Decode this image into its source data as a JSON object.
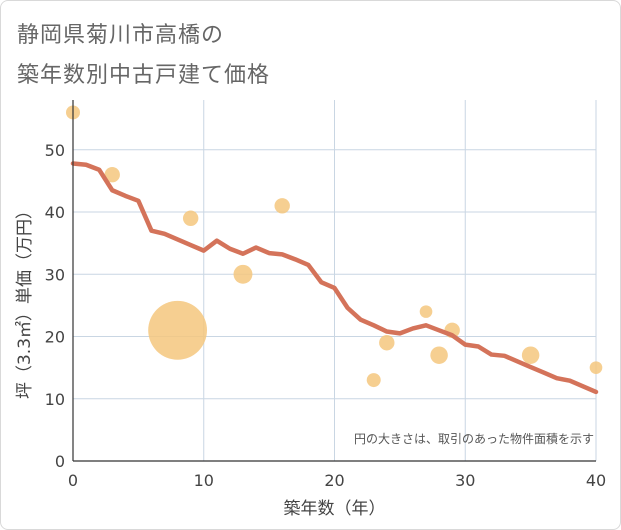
{
  "title_lines": [
    "静岡県菊川市高橋の",
    "築年数別中古戸建て価格"
  ],
  "chart_data": {
    "type": "scatter+line",
    "title": "静岡県菊川市高橋の築年数別中古戸建て価格",
    "xlabel": "築年数（年）",
    "ylabel": "坪（3.3㎡）単価（万円）",
    "xlim": [
      0,
      40
    ],
    "ylim": [
      0,
      58
    ],
    "xticks": [
      0,
      10,
      20,
      30,
      40
    ],
    "yticks": [
      0,
      10,
      20,
      30,
      40,
      50
    ],
    "grid": true,
    "note": "円の大きさは、取引のあった物件面積を示す",
    "colors": {
      "bubble": "#f5c77e",
      "line": "#d4735a",
      "grid": "#c9d6e3"
    },
    "scatter": [
      {
        "x": 0,
        "y": 56,
        "size": 1.0
      },
      {
        "x": 3,
        "y": 46,
        "size": 1.1
      },
      {
        "x": 8,
        "y": 21,
        "size": 4.2
      },
      {
        "x": 9,
        "y": 39,
        "size": 1.1
      },
      {
        "x": 13,
        "y": 30,
        "size": 1.35
      },
      {
        "x": 16,
        "y": 41,
        "size": 1.1
      },
      {
        "x": 23,
        "y": 13,
        "size": 1.0
      },
      {
        "x": 24,
        "y": 19,
        "size": 1.1
      },
      {
        "x": 27,
        "y": 24,
        "size": 0.9
      },
      {
        "x": 28,
        "y": 17,
        "size": 1.25
      },
      {
        "x": 29,
        "y": 21,
        "size": 1.1
      },
      {
        "x": 35,
        "y": 17,
        "size": 1.25
      },
      {
        "x": 40,
        "y": 15,
        "size": 0.9
      }
    ],
    "series": [
      {
        "name": "trend",
        "x": [
          0,
          1,
          2,
          3,
          4,
          5,
          6,
          7,
          8,
          9,
          10,
          11,
          12,
          13,
          14,
          15,
          16,
          17,
          18,
          19,
          20,
          21,
          22,
          23,
          24,
          25,
          26,
          27,
          28,
          29,
          30,
          31,
          32,
          33,
          34,
          35,
          36,
          37,
          38,
          39,
          40
        ],
        "values": [
          47.8,
          47.6,
          46.8,
          43.5,
          42.6,
          41.8,
          37.0,
          36.5,
          35.6,
          34.7,
          33.8,
          35.4,
          34.1,
          33.3,
          34.3,
          33.4,
          33.2,
          32.4,
          31.5,
          28.7,
          27.8,
          24.6,
          22.7,
          21.8,
          20.8,
          20.5,
          21.3,
          21.8,
          21.0,
          20.2,
          18.7,
          18.4,
          17.1,
          16.9,
          16.0,
          15.1,
          14.2,
          13.3,
          12.9,
          12.0,
          11.1
        ]
      }
    ]
  }
}
